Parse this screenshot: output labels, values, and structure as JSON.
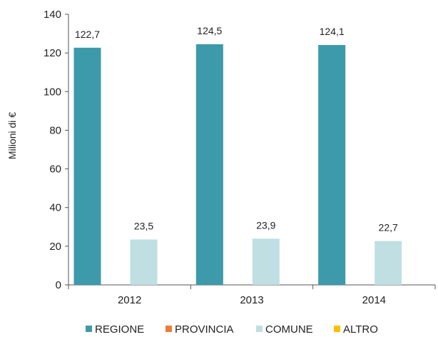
{
  "chart_data": {
    "type": "bar",
    "ylabel": "Milioni di €",
    "ylim": [
      0,
      140
    ],
    "yticks": [
      0,
      20,
      40,
      60,
      80,
      100,
      120,
      140
    ],
    "categories": [
      "2012",
      "2013",
      "2014"
    ],
    "series": [
      {
        "name": "REGIONE",
        "color": "#3d9aaa",
        "values": [
          122.7,
          124.5,
          124.1
        ],
        "labels": [
          "122,7",
          "124,5",
          "124,1"
        ]
      },
      {
        "name": "PROVINCIA",
        "color": "#ed7d31",
        "values": [
          null,
          null,
          null
        ],
        "labels": [
          "",
          "",
          ""
        ]
      },
      {
        "name": "COMUNE",
        "color": "#bfdfe3",
        "values": [
          23.5,
          23.9,
          22.7
        ],
        "labels": [
          "23,5",
          "23,9",
          "22,7"
        ]
      },
      {
        "name": "ALTRO",
        "color": "#ffc000",
        "values": [
          null,
          null,
          null
        ],
        "labels": [
          "",
          "",
          ""
        ]
      }
    ],
    "legend_position": "bottom",
    "grid": false
  }
}
